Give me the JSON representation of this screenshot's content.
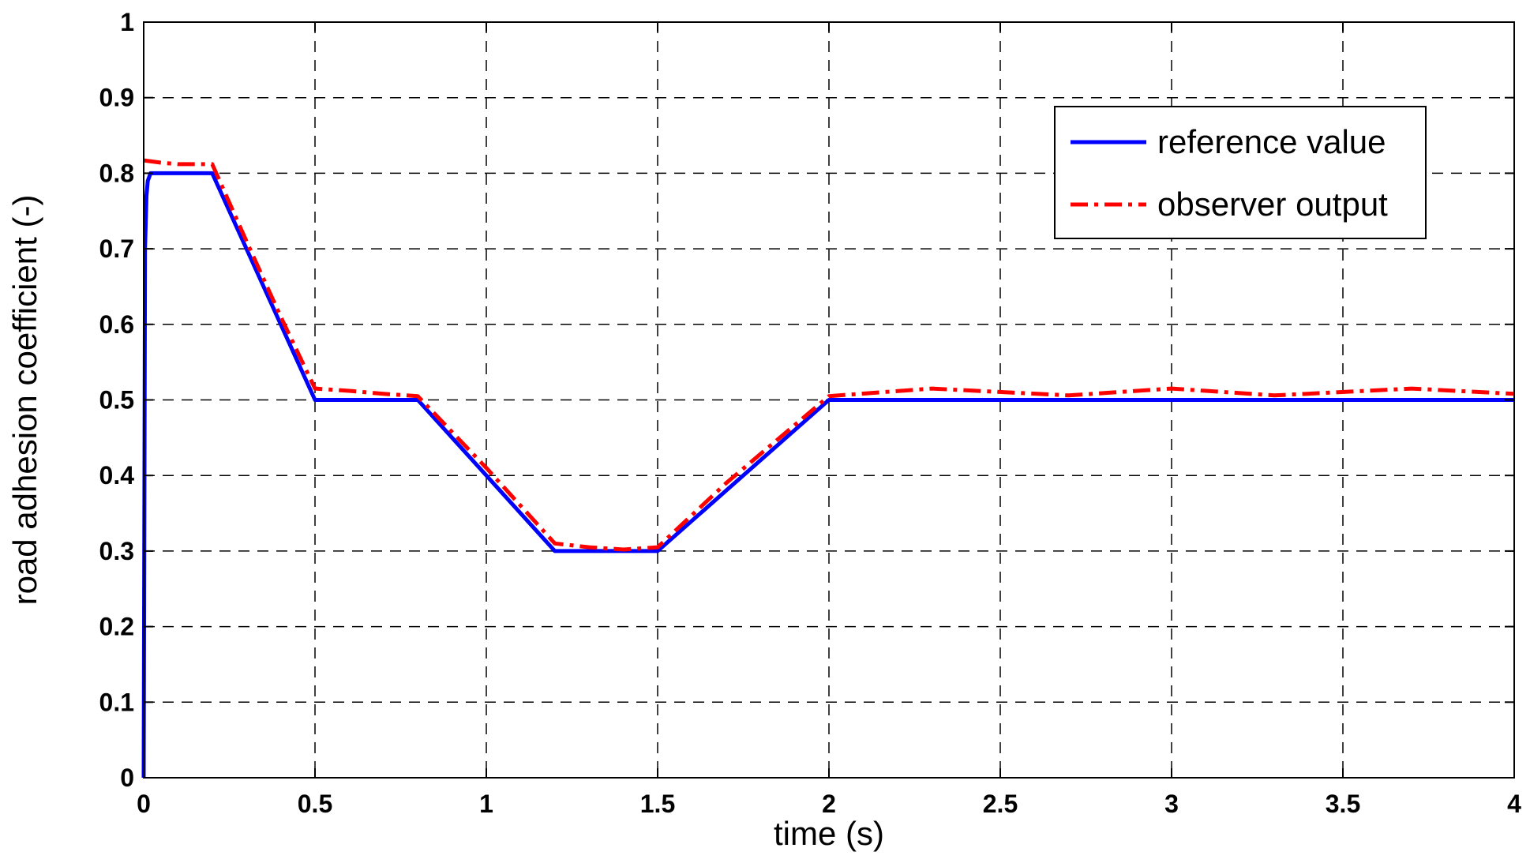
{
  "chart_data": {
    "type": "line",
    "title": "",
    "xlabel": "time (s)",
    "ylabel": "road adhesion coefficient (-)",
    "xlim": [
      0,
      4
    ],
    "ylim": [
      0,
      1
    ],
    "xticks": [
      0,
      0.5,
      1,
      1.5,
      2,
      2.5,
      3,
      3.5,
      4
    ],
    "xtick_labels": [
      "0",
      "0.5",
      "1",
      "1.5",
      "2",
      "2.5",
      "3",
      "3.5",
      "4"
    ],
    "yticks": [
      0,
      0.1,
      0.2,
      0.3,
      0.4,
      0.5,
      0.6,
      0.7,
      0.8,
      0.9,
      1
    ],
    "ytick_labels": [
      "0",
      "0.1",
      "0.2",
      "0.3",
      "0.4",
      "0.5",
      "0.6",
      "0.7",
      "0.8",
      "0.9",
      "1"
    ],
    "grid": true,
    "legend_position": "top-right",
    "series": [
      {
        "name": "reference value",
        "color": "#0000ff",
        "style": "solid",
        "x": [
          0,
          0.004,
          0.008,
          0.012,
          0.02,
          0.2,
          0.3,
          0.4,
          0.5,
          0.8,
          1.0,
          1.2,
          1.5,
          1.7,
          2.0,
          4.0
        ],
        "y": [
          0,
          0.7,
          0.77,
          0.79,
          0.8,
          0.8,
          0.7,
          0.6,
          0.5,
          0.5,
          0.4,
          0.3,
          0.3,
          0.38,
          0.5,
          0.5
        ]
      },
      {
        "name": "observer output",
        "color": "#ff0000",
        "style": "dashdot",
        "x": [
          0,
          0.05,
          0.1,
          0.2,
          0.3,
          0.4,
          0.5,
          0.6,
          0.7,
          0.8,
          1.0,
          1.2,
          1.3,
          1.4,
          1.5,
          1.7,
          2.0,
          2.3,
          2.7,
          3.0,
          3.3,
          3.7,
          4.0
        ],
        "y": [
          0.817,
          0.814,
          0.812,
          0.812,
          0.71,
          0.61,
          0.515,
          0.512,
          0.508,
          0.505,
          0.41,
          0.31,
          0.305,
          0.302,
          0.305,
          0.39,
          0.505,
          0.515,
          0.506,
          0.515,
          0.506,
          0.515,
          0.508
        ]
      }
    ]
  }
}
